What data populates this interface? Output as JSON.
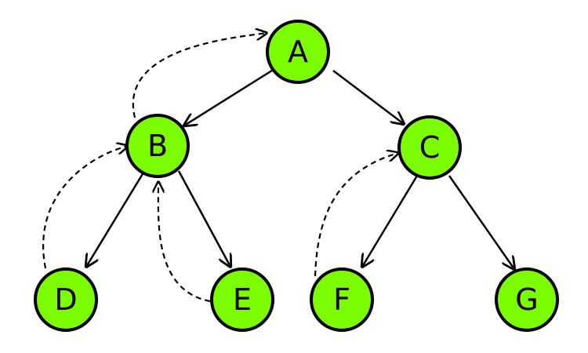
{
  "diagram": {
    "type": "threaded-binary-tree",
    "colors": {
      "node_fill": "#7cfc00",
      "node_stroke": "#000000",
      "edge": "#000000",
      "background": "#ffffff"
    },
    "nodes": {
      "a": {
        "label": "A"
      },
      "b": {
        "label": "B"
      },
      "c": {
        "label": "C"
      },
      "d": {
        "label": "D"
      },
      "e": {
        "label": "E"
      },
      "f": {
        "label": "F"
      },
      "g": {
        "label": "G"
      }
    },
    "edges": [
      {
        "from": "A",
        "to": "B",
        "style": "solid"
      },
      {
        "from": "A",
        "to": "C",
        "style": "solid"
      },
      {
        "from": "B",
        "to": "D",
        "style": "solid"
      },
      {
        "from": "B",
        "to": "E",
        "style": "solid"
      },
      {
        "from": "C",
        "to": "F",
        "style": "solid"
      },
      {
        "from": "C",
        "to": "G",
        "style": "solid"
      }
    ],
    "threads": [
      {
        "from": "B",
        "to": "A",
        "style": "dashed"
      },
      {
        "from": "D",
        "to": "B",
        "style": "dashed"
      },
      {
        "from": "E",
        "to": "B",
        "style": "dashed"
      },
      {
        "from": "F",
        "to": "C",
        "style": "dashed"
      }
    ]
  }
}
